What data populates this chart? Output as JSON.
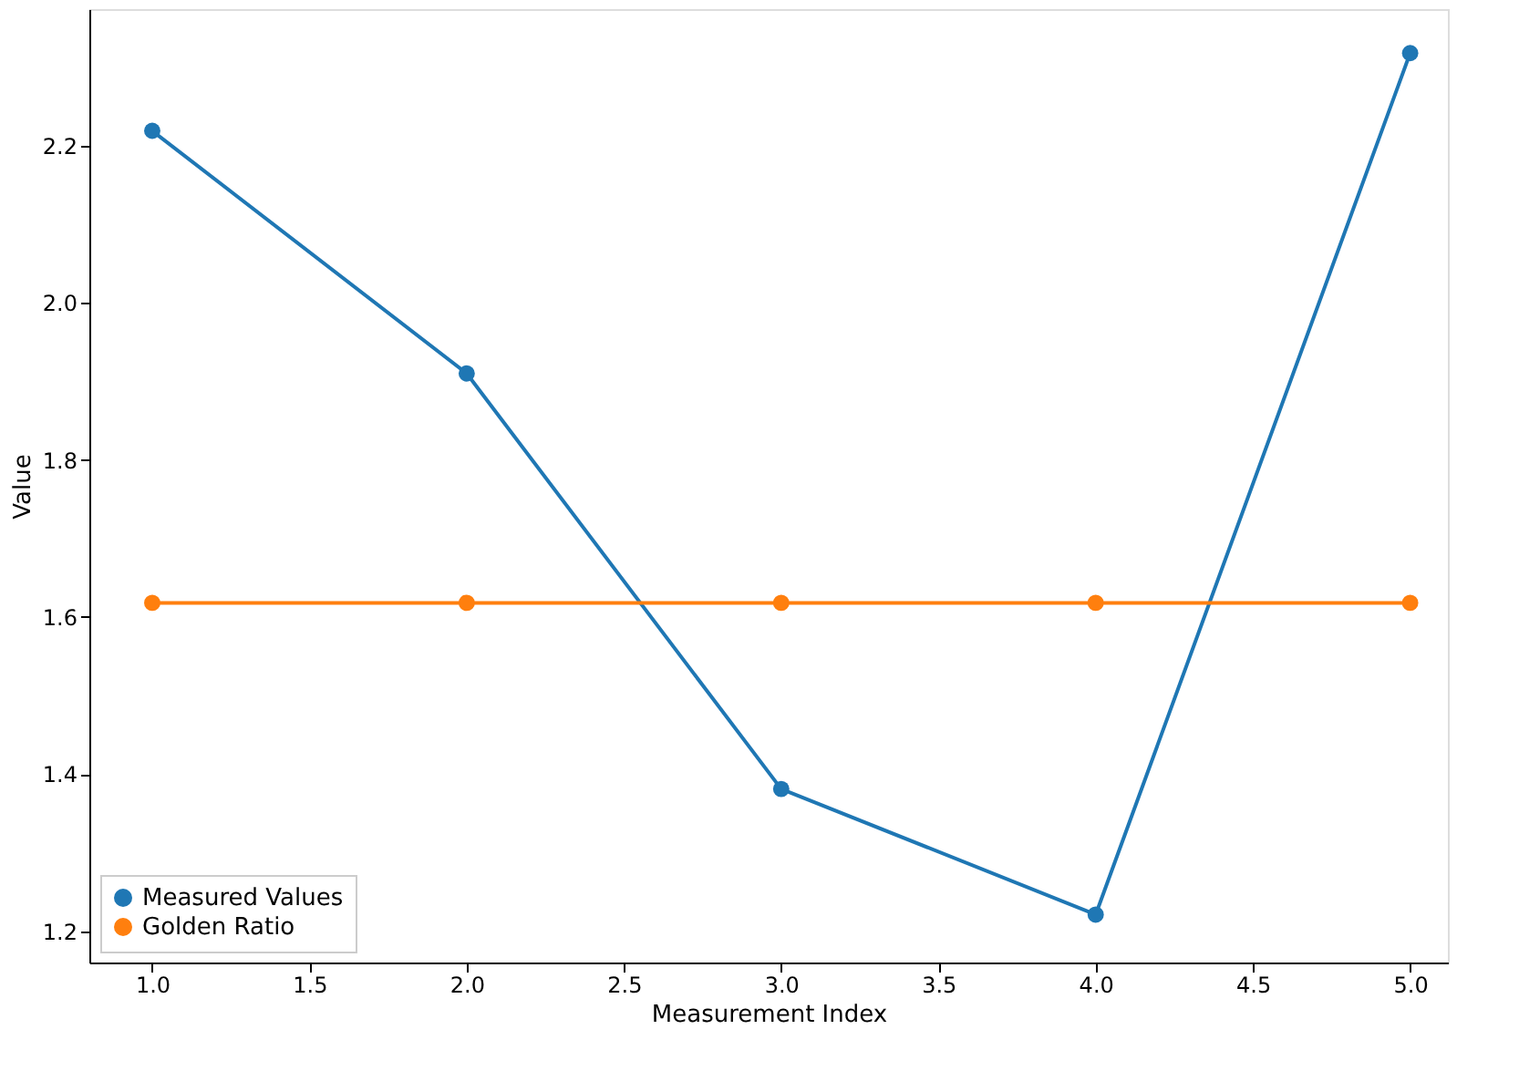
{
  "chart_data": {
    "type": "line",
    "xlabel": "Measurement Index",
    "ylabel": "Value",
    "x": [
      1,
      2,
      3,
      4,
      5
    ],
    "series": [
      {
        "name": "Measured Values",
        "color": "#1f77b4",
        "values": [
          2.219,
          1.91,
          1.381,
          1.221,
          2.318
        ]
      },
      {
        "name": "Golden Ratio",
        "color": "#ff7f0e",
        "values": [
          1.618,
          1.618,
          1.618,
          1.618,
          1.618
        ]
      }
    ],
    "xlim": [
      0.8,
      5.12
    ],
    "xticks": [
      {
        "value": 1,
        "label": "1.0"
      },
      {
        "value": 1.5,
        "label": "1.5"
      },
      {
        "value": 2,
        "label": "2.0"
      },
      {
        "value": 2.5,
        "label": "2.5"
      },
      {
        "value": 3,
        "label": "3.0"
      },
      {
        "value": 3.5,
        "label": "3.5"
      },
      {
        "value": 4,
        "label": "4.0"
      },
      {
        "value": 4.5,
        "label": "4.5"
      },
      {
        "value": 5,
        "label": "5.0"
      }
    ],
    "ylim": [
      1.16,
      2.374
    ],
    "yticks": [
      {
        "value": 1.2,
        "label": "1.2"
      },
      {
        "value": 1.4,
        "label": "1.4"
      },
      {
        "value": 1.6,
        "label": "1.6"
      },
      {
        "value": 1.8,
        "label": "1.8"
      },
      {
        "value": 2.0,
        "label": "2.0"
      },
      {
        "value": 2.2,
        "label": "2.2"
      }
    ],
    "grid": false,
    "legend": "bottom left",
    "marker": "circle",
    "line_style": "solid"
  }
}
